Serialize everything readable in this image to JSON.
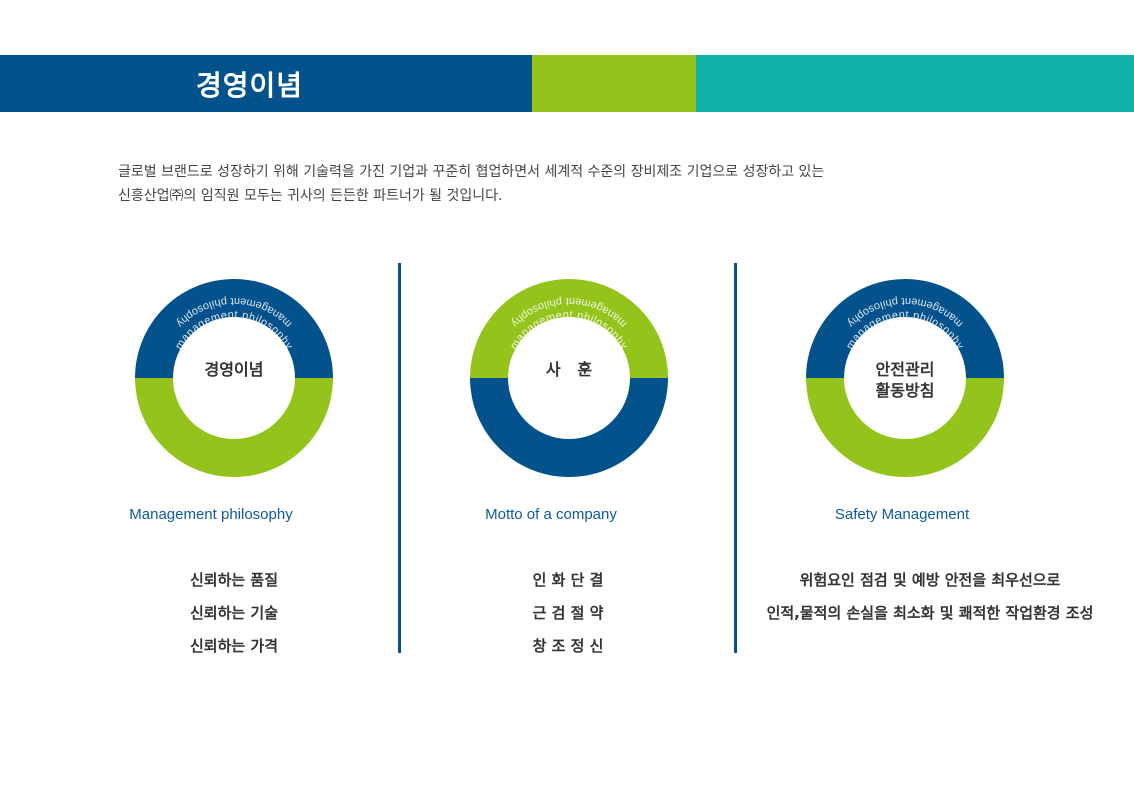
{
  "header": {
    "title": "경영이념",
    "colors": {
      "blue": "#03528c",
      "green": "#94c41c",
      "teal": "#11b1a8"
    }
  },
  "intro": {
    "line1": "글로벌 브랜드로 성장하기 위해 기술력을 가진 기업과 꾸준히 협업하면서 세계적 수준의 장비제조 기업으로 성장하고 있는",
    "line2": "신흥산업㈜의 임직원 모두는 귀사의 든든한 파트너가 될 것입니다."
  },
  "columns": [
    {
      "center": [
        "경영이념"
      ],
      "ring_text": "management philosophy",
      "top_color": "#03528c",
      "bottom_color": "#94c41c",
      "english_label": "Management philosophy",
      "items": [
        "신뢰하는 품질",
        "신뢰하는 기술",
        "신뢰하는 가격"
      ]
    },
    {
      "center": [
        "사   훈"
      ],
      "ring_text": "management philosophy",
      "top_color": "#94c41c",
      "bottom_color": "#03528c",
      "english_label": "Motto of a company",
      "items": [
        "인 화 단 결",
        "근 검 절 약",
        "창 조 정 신"
      ]
    },
    {
      "center": [
        "안전관리",
        "활동방침"
      ],
      "ring_text": "management philosophy",
      "top_color": "#03528c",
      "bottom_color": "#94c41c",
      "english_label": "Safety Management",
      "items": [
        "위험요인 점검 및 예방 안전을 최우선으로",
        "인적,물적의 손실을 최소화 및 쾌적한 작업환경 조성"
      ]
    }
  ]
}
